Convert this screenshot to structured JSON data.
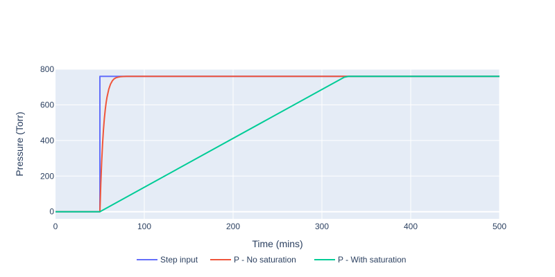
{
  "chart_data": {
    "type": "line",
    "title": "",
    "xlabel": "Time (mins)",
    "ylabel": "Pressure (Torr)",
    "xlim": [
      0,
      500
    ],
    "ylim": [
      -40,
      800
    ],
    "xticks": [
      0,
      100,
      200,
      300,
      400,
      500
    ],
    "yticks": [
      0,
      200,
      400,
      600,
      800
    ],
    "grid": true,
    "legend_position": "bottom",
    "plot_bgcolor": "#e5ecf6",
    "series": [
      {
        "name": "Step input",
        "color": "#636efa",
        "x": [
          0,
          50,
          50,
          500
        ],
        "y": [
          0,
          0,
          760,
          760
        ]
      },
      {
        "name": "P - No saturation",
        "color": "#ef553b",
        "x": [
          0,
          50,
          51,
          52,
          53,
          54,
          55,
          56,
          57,
          58,
          60,
          62,
          64,
          66,
          68,
          70,
          73,
          76,
          80,
          85,
          90,
          100,
          150,
          200,
          300,
          400,
          500
        ],
        "y": [
          0,
          0,
          157,
          282,
          381,
          460,
          523,
          572,
          612,
          643,
          688,
          717,
          735,
          746,
          752,
          755,
          758,
          759,
          760,
          760,
          760,
          760,
          760,
          760,
          760,
          760,
          760
        ]
      },
      {
        "name": "P - With saturation",
        "color": "#00cc96",
        "x": [
          0,
          50,
          325,
          330,
          500
        ],
        "y": [
          0,
          0,
          755,
          760,
          760
        ]
      }
    ]
  }
}
